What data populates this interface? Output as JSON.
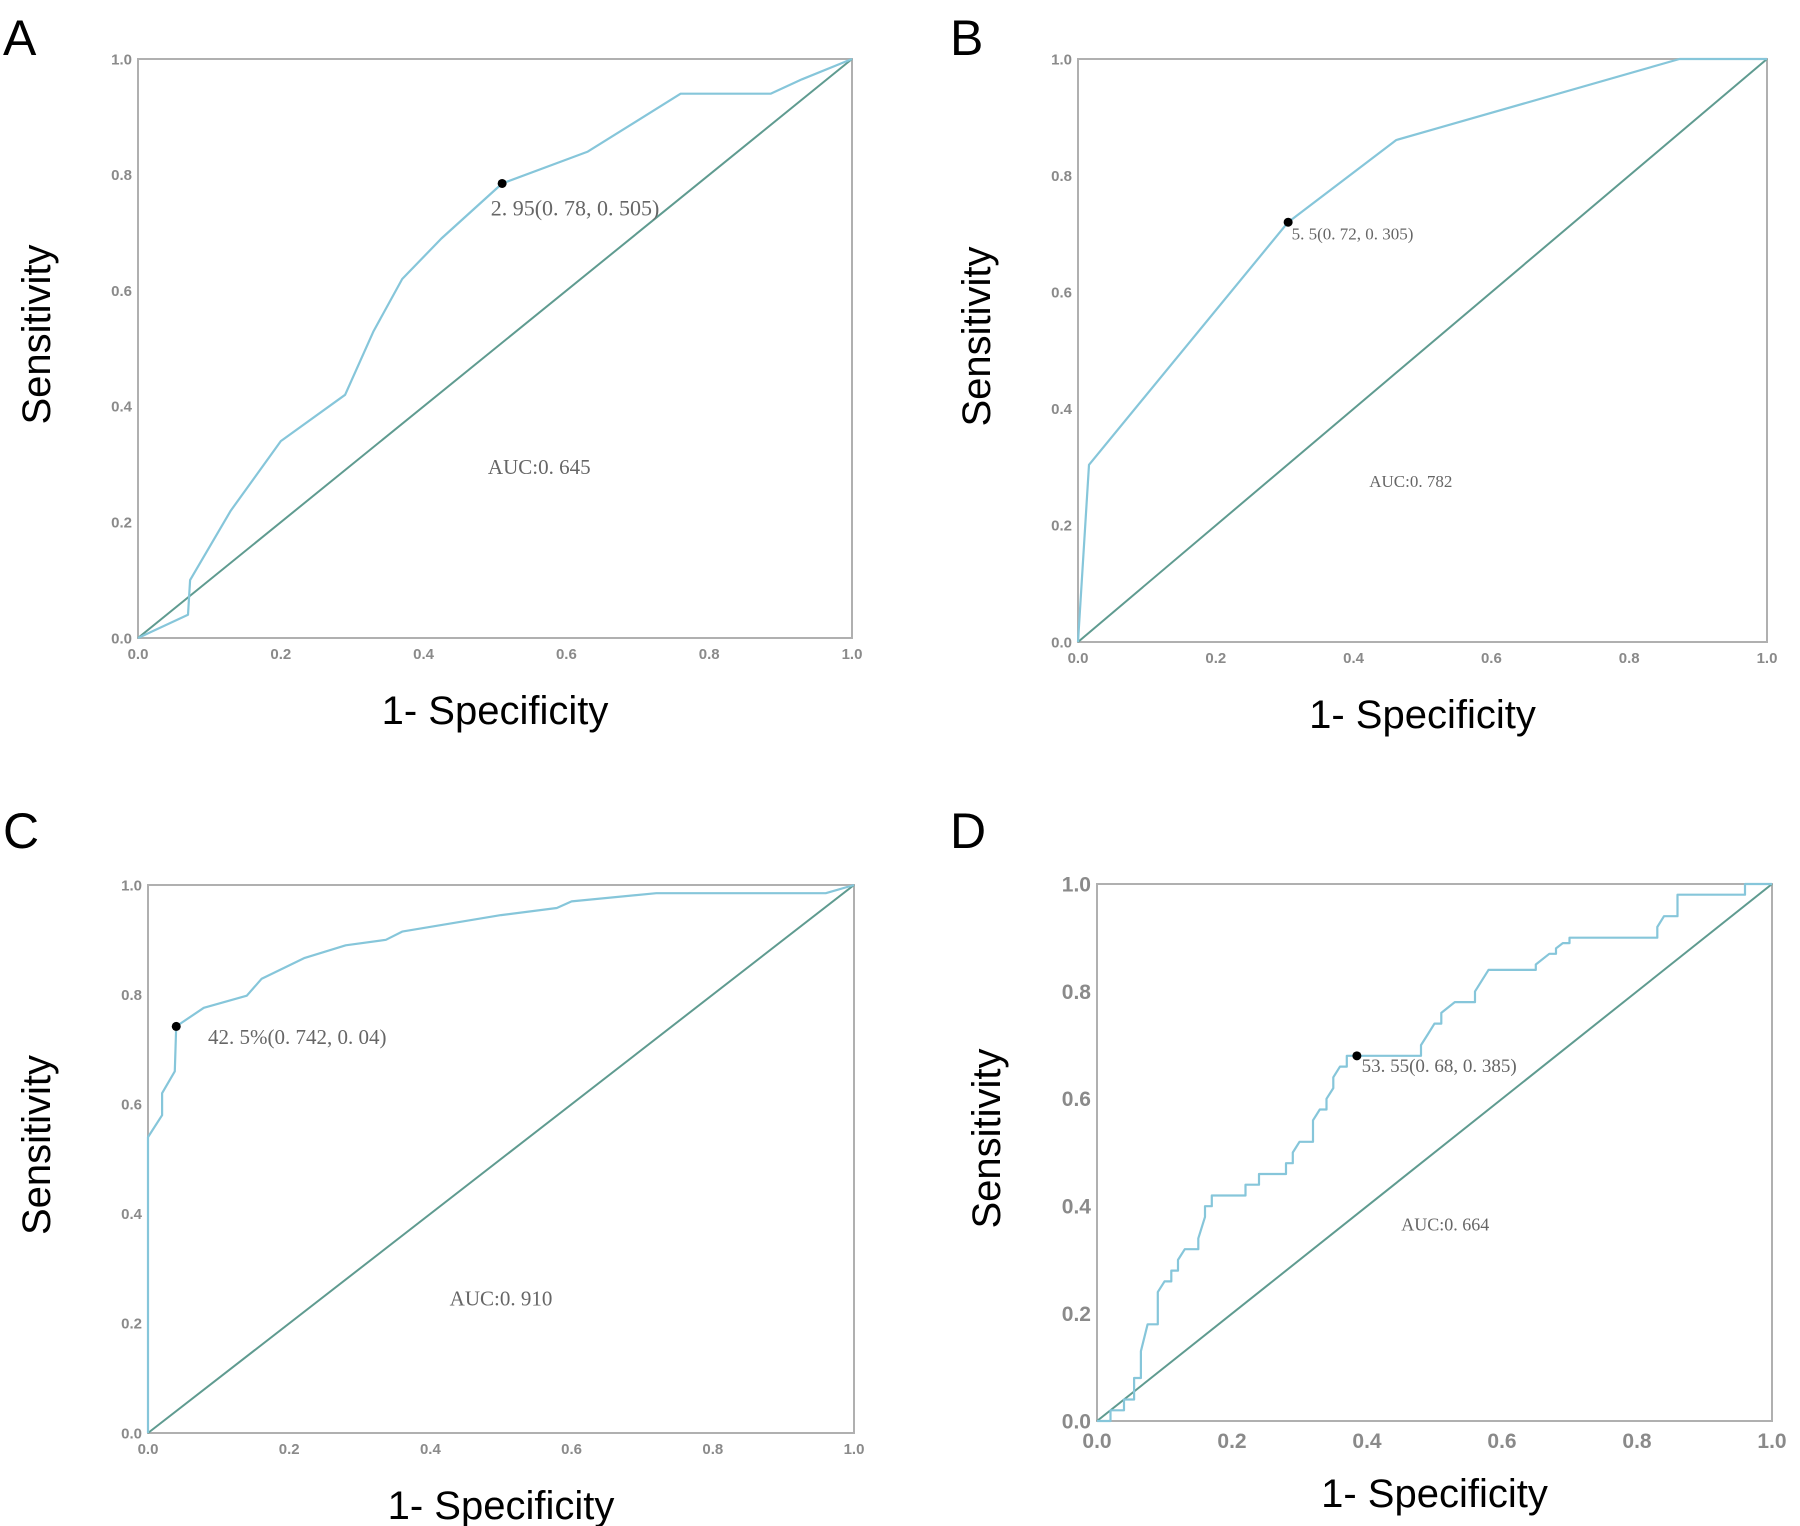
{
  "colors": {
    "curve": "#86c6da",
    "reference": "#5f9b90",
    "frame": "#b0b0b0",
    "cutoff_point": "#000000"
  },
  "chart_data": [
    {
      "panel": "A",
      "type": "line",
      "xlabel": "1- Specificity",
      "ylabel": "Sensitivity",
      "xlim": [
        0,
        1
      ],
      "ylim": [
        0,
        1
      ],
      "xticks": [
        "0.0",
        "0.2",
        "0.4",
        "0.6",
        "0.8",
        "1.0"
      ],
      "yticks": [
        "0.0",
        "0.2",
        "0.4",
        "0.6",
        "0.8",
        "1.0"
      ],
      "grid": false,
      "reference_line": [
        [
          0,
          0
        ],
        [
          1,
          1
        ]
      ],
      "roc": [
        [
          0,
          0
        ],
        [
          0.07,
          0.04
        ],
        [
          0.073,
          0.1
        ],
        [
          0.13,
          0.22
        ],
        [
          0.2,
          0.34
        ],
        [
          0.29,
          0.42
        ],
        [
          0.33,
          0.53
        ],
        [
          0.37,
          0.62
        ],
        [
          0.425,
          0.69
        ],
        [
          0.51,
          0.785
        ],
        [
          0.63,
          0.84
        ],
        [
          0.76,
          0.94
        ],
        [
          0.886,
          0.94
        ],
        [
          0.93,
          0.965
        ],
        [
          1,
          1
        ]
      ],
      "cutoff": {
        "x": 0.51,
        "y": 0.785,
        "label": "2. 95(0. 78, 0. 505)"
      },
      "auc_label": "AUC:0. 645"
    },
    {
      "panel": "B",
      "type": "line",
      "xlabel": "1- Specificity",
      "ylabel": "Sensitivity",
      "xlim": [
        0,
        1
      ],
      "ylim": [
        0,
        1
      ],
      "xticks": [
        "0.0",
        "0.2",
        "0.4",
        "0.6",
        "0.8",
        "1.0"
      ],
      "yticks": [
        "0.0",
        "0.2",
        "0.4",
        "0.6",
        "0.8",
        "1.0"
      ],
      "grid": false,
      "reference_line": [
        [
          0,
          0
        ],
        [
          1,
          1
        ]
      ],
      "roc": [
        [
          0,
          0
        ],
        [
          0.016,
          0.304
        ],
        [
          0.305,
          0.72
        ],
        [
          0.462,
          0.861
        ],
        [
          0.873,
          1.0
        ],
        [
          1,
          1
        ]
      ],
      "cutoff": {
        "x": 0.305,
        "y": 0.72,
        "label": "5. 5(0. 72, 0. 305)"
      },
      "auc_label": "AUC:0. 782"
    },
    {
      "panel": "C",
      "type": "line",
      "xlabel": "1- Specificity",
      "ylabel": "Sensitivity",
      "xlim": [
        0,
        1
      ],
      "ylim": [
        0,
        1
      ],
      "xticks": [
        "0.0",
        "0.2",
        "0.4",
        "0.6",
        "0.8",
        "1.0"
      ],
      "yticks": [
        "0.0",
        "0.2",
        "0.4",
        "0.6",
        "0.8",
        "1.0"
      ],
      "grid": false,
      "reference_line": [
        [
          0,
          0
        ],
        [
          1,
          1
        ]
      ],
      "roc": [
        [
          0,
          0
        ],
        [
          0,
          0.54
        ],
        [
          0.02,
          0.58
        ],
        [
          0.02,
          0.62
        ],
        [
          0.038,
          0.66
        ],
        [
          0.04,
          0.742
        ],
        [
          0.079,
          0.776
        ],
        [
          0.14,
          0.798
        ],
        [
          0.161,
          0.829
        ],
        [
          0.222,
          0.867
        ],
        [
          0.28,
          0.89
        ],
        [
          0.337,
          0.9
        ],
        [
          0.36,
          0.915
        ],
        [
          0.5,
          0.945
        ],
        [
          0.579,
          0.958
        ],
        [
          0.6,
          0.97
        ],
        [
          0.72,
          0.985
        ],
        [
          0.96,
          0.985
        ],
        [
          1,
          1
        ]
      ],
      "cutoff": {
        "x": 0.04,
        "y": 0.742,
        "label": "42. 5%(0. 742, 0. 04)"
      },
      "auc_label": "AUC:0. 910"
    },
    {
      "panel": "D",
      "type": "line",
      "xlabel": "1- Specificity",
      "ylabel": "Sensitivity",
      "xlim": [
        0,
        1
      ],
      "ylim": [
        0,
        1
      ],
      "xticks": [
        "0.0",
        "0.2",
        "0.4",
        "0.6",
        "0.8",
        "1.0"
      ],
      "yticks": [
        "0.0",
        "0.2",
        "0.4",
        "0.6",
        "0.8",
        "1.0"
      ],
      "grid": false,
      "reference_line": [
        [
          0,
          0
        ],
        [
          1,
          1
        ]
      ],
      "roc": [
        [
          0,
          0
        ],
        [
          0.02,
          0
        ],
        [
          0.02,
          0.02
        ],
        [
          0.04,
          0.02
        ],
        [
          0.04,
          0.04
        ],
        [
          0.055,
          0.04
        ],
        [
          0.055,
          0.08
        ],
        [
          0.065,
          0.08
        ],
        [
          0.065,
          0.13
        ],
        [
          0.075,
          0.18
        ],
        [
          0.09,
          0.18
        ],
        [
          0.09,
          0.24
        ],
        [
          0.1,
          0.26
        ],
        [
          0.11,
          0.26
        ],
        [
          0.11,
          0.28
        ],
        [
          0.12,
          0.28
        ],
        [
          0.12,
          0.3
        ],
        [
          0.13,
          0.32
        ],
        [
          0.15,
          0.32
        ],
        [
          0.15,
          0.34
        ],
        [
          0.16,
          0.38
        ],
        [
          0.16,
          0.4
        ],
        [
          0.17,
          0.4
        ],
        [
          0.17,
          0.42
        ],
        [
          0.22,
          0.42
        ],
        [
          0.22,
          0.44
        ],
        [
          0.24,
          0.44
        ],
        [
          0.24,
          0.46
        ],
        [
          0.28,
          0.46
        ],
        [
          0.28,
          0.48
        ],
        [
          0.29,
          0.48
        ],
        [
          0.29,
          0.5
        ],
        [
          0.3,
          0.52
        ],
        [
          0.32,
          0.52
        ],
        [
          0.32,
          0.56
        ],
        [
          0.33,
          0.58
        ],
        [
          0.34,
          0.58
        ],
        [
          0.34,
          0.6
        ],
        [
          0.35,
          0.62
        ],
        [
          0.35,
          0.64
        ],
        [
          0.36,
          0.66
        ],
        [
          0.37,
          0.66
        ],
        [
          0.37,
          0.68
        ],
        [
          0.385,
          0.68
        ],
        [
          0.48,
          0.68
        ],
        [
          0.48,
          0.7
        ],
        [
          0.49,
          0.72
        ],
        [
          0.5,
          0.74
        ],
        [
          0.51,
          0.74
        ],
        [
          0.51,
          0.76
        ],
        [
          0.53,
          0.78
        ],
        [
          0.56,
          0.78
        ],
        [
          0.56,
          0.8
        ],
        [
          0.58,
          0.84
        ],
        [
          0.65,
          0.84
        ],
        [
          0.65,
          0.85
        ],
        [
          0.67,
          0.87
        ],
        [
          0.68,
          0.87
        ],
        [
          0.68,
          0.88
        ],
        [
          0.69,
          0.89
        ],
        [
          0.7,
          0.89
        ],
        [
          0.7,
          0.9
        ],
        [
          0.83,
          0.9
        ],
        [
          0.83,
          0.92
        ],
        [
          0.84,
          0.94
        ],
        [
          0.86,
          0.94
        ],
        [
          0.86,
          0.98
        ],
        [
          0.96,
          0.98
        ],
        [
          0.96,
          1
        ],
        [
          1,
          1
        ]
      ],
      "cutoff": {
        "x": 0.385,
        "y": 0.68,
        "label": "53. 55(0. 68, 0. 385)"
      },
      "auc_label": "AUC:0. 664"
    }
  ]
}
